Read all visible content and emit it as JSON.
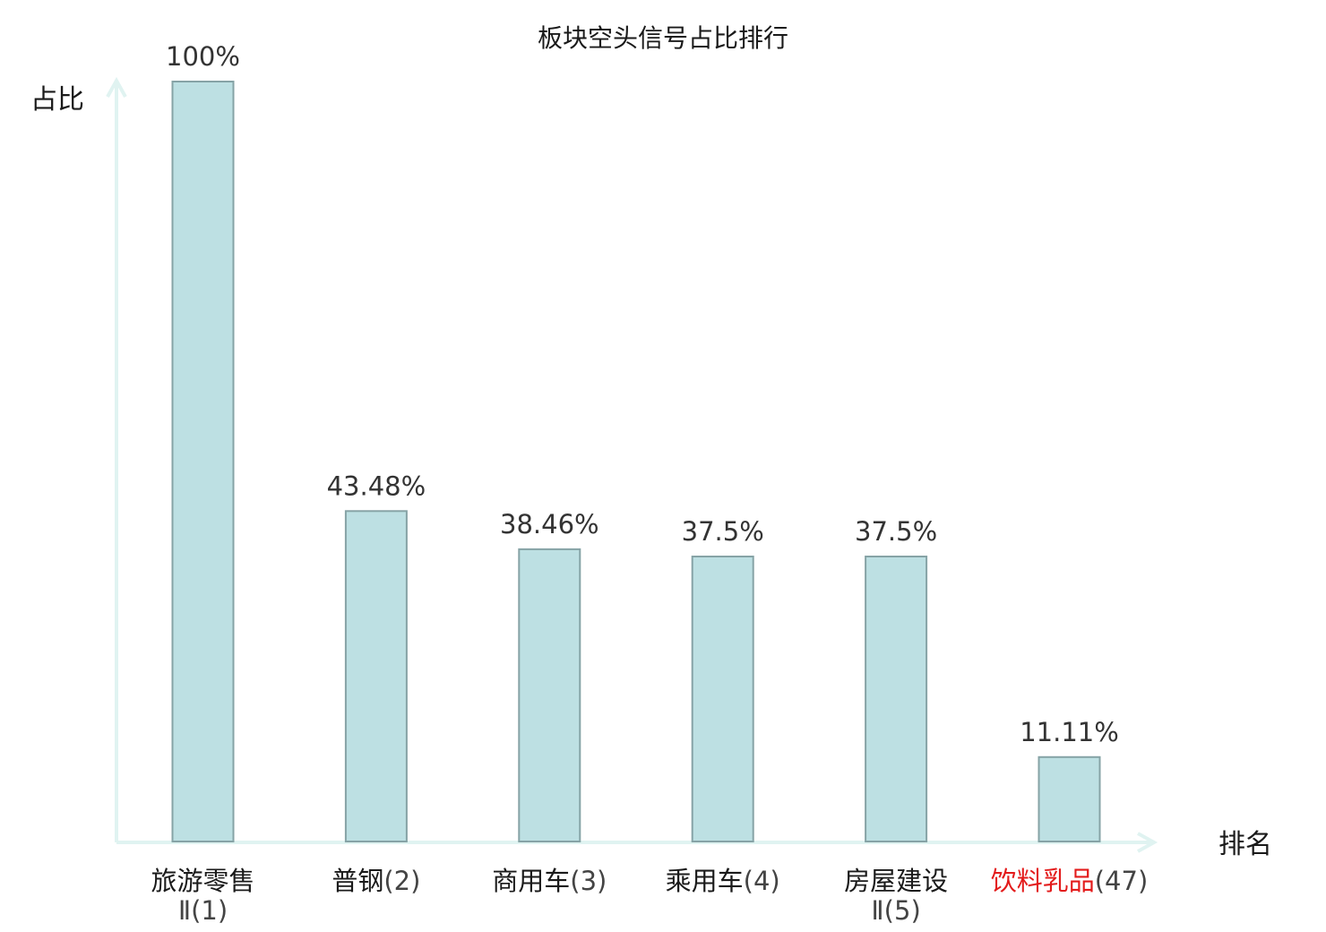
{
  "chart_data": {
    "type": "bar",
    "title": "板块空头信号占比排行",
    "ylabel": "占比",
    "xlabel": "排名",
    "ylim": [
      0,
      100
    ],
    "grid": false,
    "categories": [
      {
        "name": "旅游零售",
        "rank": "Ⅱ(1)",
        "highlight": false
      },
      {
        "name": "普钢",
        "rank": "(2)",
        "highlight": false
      },
      {
        "name": "商用车",
        "rank": "(3)",
        "highlight": false
      },
      {
        "name": "乘用车",
        "rank": "(4)",
        "highlight": false
      },
      {
        "name": "房屋建设",
        "rank": "Ⅱ(5)",
        "highlight": false
      },
      {
        "name": "饮料乳品",
        "rank": "(47)",
        "highlight": true
      }
    ],
    "values": [
      100,
      43.48,
      38.46,
      37.5,
      37.5,
      11.11
    ],
    "value_labels": [
      "100%",
      "43.48%",
      "38.46%",
      "37.5%",
      "37.5%",
      "11.11%"
    ],
    "colors": {
      "bar_fill": "#bde0e3",
      "bar_stroke": "#86a3a6",
      "axis": "#e0f3f1",
      "highlight_text": "#e31b1b",
      "normal_text": "#1a1a1a"
    }
  }
}
